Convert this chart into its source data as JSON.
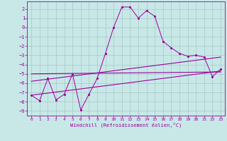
{
  "xlabel": "Windchill (Refroidissement éolien,°C)",
  "bg_color": "#c8e8e8",
  "grid_color": "#a8c8c8",
  "line_color": "#990099",
  "xlim": [
    -0.5,
    23.5
  ],
  "ylim": [
    -9.5,
    2.8
  ],
  "xticks": [
    0,
    1,
    2,
    3,
    4,
    5,
    6,
    7,
    8,
    9,
    10,
    11,
    12,
    13,
    14,
    15,
    16,
    17,
    18,
    19,
    20,
    21,
    22,
    23
  ],
  "yticks": [
    2,
    1,
    0,
    -1,
    -2,
    -3,
    -4,
    -5,
    -6,
    -7,
    -8,
    -9
  ],
  "curve1_x": [
    0,
    1,
    2,
    3,
    4,
    5,
    6,
    7,
    8,
    9,
    10,
    11,
    12,
    13,
    14,
    15,
    16,
    17,
    18,
    19,
    20,
    21,
    22,
    23
  ],
  "curve1_y": [
    -7.3,
    -7.9,
    -5.5,
    -7.8,
    -7.2,
    -5.0,
    -8.9,
    -7.2,
    -5.5,
    -2.8,
    0.0,
    2.2,
    2.2,
    1.0,
    1.8,
    1.2,
    -1.5,
    -2.2,
    -2.8,
    -3.1,
    -3.0,
    -3.2,
    -5.3,
    -4.5
  ],
  "trend1_x": [
    0,
    23
  ],
  "trend1_y": [
    -7.3,
    -4.7
  ],
  "trend2_x": [
    0,
    23
  ],
  "trend2_y": [
    -5.8,
    -3.2
  ],
  "trend3_x": [
    0,
    23
  ],
  "trend3_y": [
    -5.0,
    -4.8
  ]
}
